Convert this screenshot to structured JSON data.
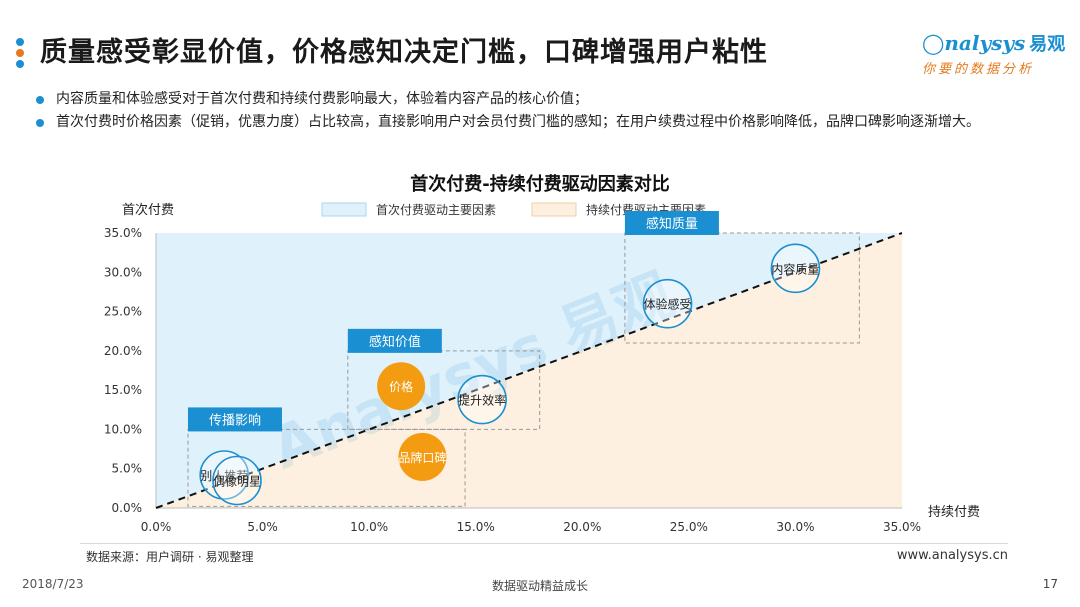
{
  "header": {
    "title": "质量感受彰显价值，价格感知决定门槛，口碑增强用户粘性",
    "logo_text": "nalysys",
    "logo_cn": "易观",
    "logo_sub": "你要的数据分析",
    "dot_colors": [
      "#1a8fd1",
      "#e47a1d",
      "#1a8fd1"
    ]
  },
  "bullets": [
    "内容质量和体验感受对于首次付费和持续付费影响最大，体验着内容产品的核心价值；",
    "首次付费时价格因素（促销，优惠力度）占比较高，直接影响用户对会员付费门槛的感知；在用户续费过程中价格影响降低，品牌口碑影响逐渐增大。"
  ],
  "chart_data": {
    "type": "scatter",
    "title": "首次付费-持续付费驱动因素对比",
    "xlabel": "持续付费",
    "ylabel": "首次付费",
    "xlim": [
      0,
      35
    ],
    "ylim": [
      0,
      35
    ],
    "x_ticks": [
      "0.0%",
      "5.0%",
      "10.0%",
      "15.0%",
      "20.0%",
      "25.0%",
      "30.0%",
      "35.0%"
    ],
    "y_ticks": [
      "0.0%",
      "5.0%",
      "10.0%",
      "15.0%",
      "20.0%",
      "25.0%",
      "30.0%",
      "35.0%"
    ],
    "legend": [
      {
        "label": "首次付费驱动主要因素",
        "color": "#dff1fb"
      },
      {
        "label": "持续付费驱动主要因素",
        "color": "#fdf0e0"
      }
    ],
    "legend_position": "top",
    "points": [
      {
        "label": "别人推荐",
        "x": 3.2,
        "y": 4.2,
        "style": "outline"
      },
      {
        "label": "偶像明星",
        "x": 3.8,
        "y": 3.5,
        "style": "outline"
      },
      {
        "label": "价格",
        "x": 11.5,
        "y": 15.5,
        "style": "filled"
      },
      {
        "label": "品牌口碑",
        "x": 12.5,
        "y": 6.5,
        "style": "filled"
      },
      {
        "label": "提升效率",
        "x": 15.3,
        "y": 13.8,
        "style": "outline"
      },
      {
        "label": "体验感受",
        "x": 24.0,
        "y": 26.0,
        "style": "outline"
      },
      {
        "label": "内容质量",
        "x": 30.0,
        "y": 30.5,
        "style": "outline"
      }
    ],
    "groups": [
      {
        "label": "传播影响",
        "x_range": [
          1.5,
          14.5
        ],
        "y_range": [
          0.2,
          10.0
        ]
      },
      {
        "label": "感知价值",
        "x_range": [
          9,
          18
        ],
        "y_range": [
          10.0,
          20.0
        ]
      },
      {
        "label": "感知质量",
        "x_range": [
          22,
          33
        ],
        "y_range": [
          21.0,
          35.0
        ]
      }
    ],
    "colors": {
      "outline": "#1a8fd1",
      "filled": "#f39c12",
      "group_label_bg": "#1a8fd1",
      "diagonal": "#111111"
    },
    "watermark": "Analysys 易观"
  },
  "footer": {
    "source": "数据来源：用户调研 · 易观整理",
    "url": "www.analysys.cn",
    "date": "2018/7/23",
    "center": "数据驱动精益成长",
    "page": "17"
  }
}
